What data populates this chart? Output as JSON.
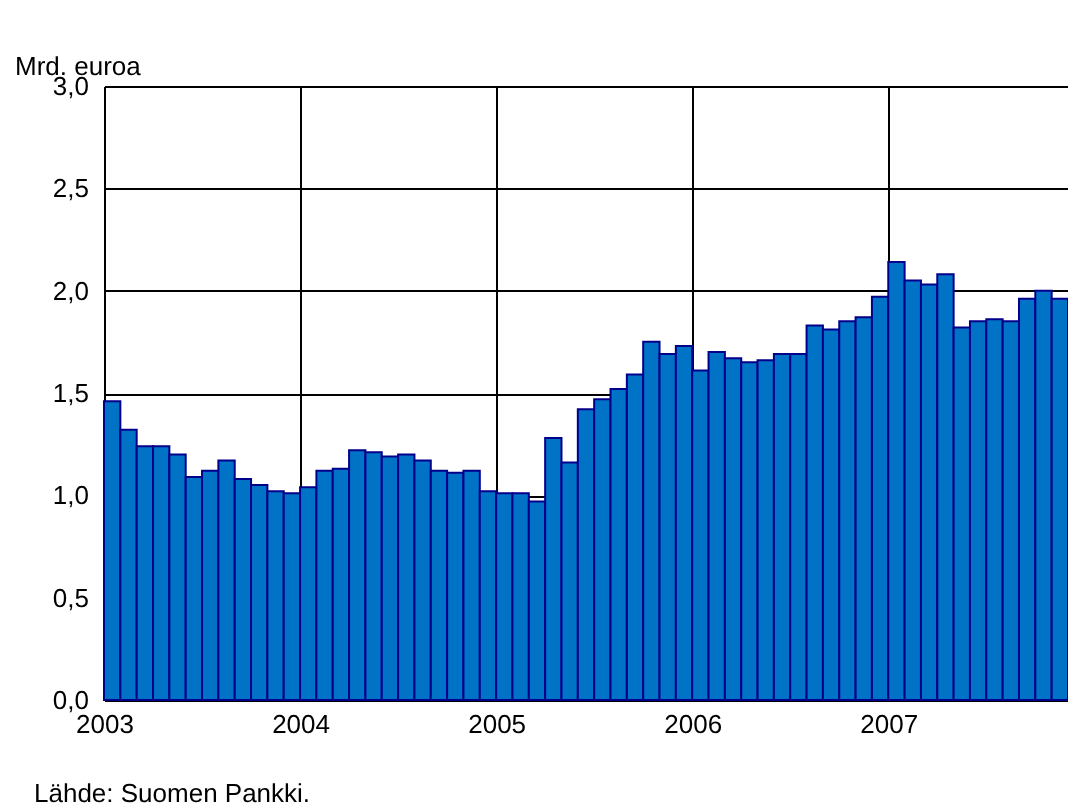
{
  "chart_data": {
    "type": "bar",
    "ylabel": "Mrd. euroa",
    "annotations": [
      "Lähde: Suomen Pankki."
    ],
    "categories": [
      "2003",
      null,
      null,
      null,
      null,
      null,
      null,
      null,
      null,
      null,
      null,
      null,
      "2004",
      null,
      null,
      null,
      null,
      null,
      null,
      null,
      null,
      null,
      null,
      null,
      "2005",
      null,
      null,
      null,
      null,
      null,
      null,
      null,
      null,
      null,
      null,
      null,
      "2006",
      null,
      null,
      null,
      null,
      null,
      null,
      null,
      null,
      null,
      null,
      null,
      "2007",
      null,
      null,
      null,
      null,
      null,
      null,
      null,
      null,
      null,
      null
    ],
    "values": [
      1.46,
      1.32,
      1.24,
      1.24,
      1.2,
      1.09,
      1.12,
      1.17,
      1.08,
      1.05,
      1.02,
      1.01,
      1.04,
      1.12,
      1.13,
      1.22,
      1.21,
      1.19,
      1.2,
      1.17,
      1.12,
      1.11,
      1.12,
      1.02,
      1.01,
      1.01,
      0.97,
      1.28,
      1.16,
      1.42,
      1.47,
      1.52,
      1.59,
      1.75,
      1.69,
      1.73,
      1.61,
      1.7,
      1.67,
      1.65,
      1.66,
      1.69,
      1.69,
      1.83,
      1.81,
      1.85,
      1.87,
      1.97,
      2.14,
      2.05,
      2.03,
      2.08,
      1.82,
      1.85,
      1.86,
      1.85,
      1.96,
      2.0,
      1.96
    ],
    "color": "#0073c6",
    "ylim": [
      0,
      3
    ],
    "yticks": [
      {
        "value": 0,
        "label": "0,0"
      },
      {
        "value": 0.5,
        "label": "0,5"
      },
      {
        "value": 1,
        "label": "1,0"
      },
      {
        "value": 1.5,
        "label": "1,5"
      },
      {
        "value": 2,
        "label": "2,0"
      },
      {
        "value": 2.5,
        "label": "2,5"
      },
      {
        "value": 3,
        "label": "3,0"
      }
    ],
    "grid": true
  }
}
